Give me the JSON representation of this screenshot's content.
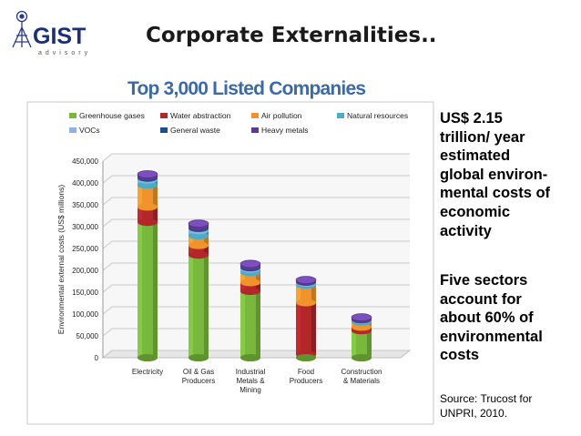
{
  "logo": {
    "brand": "GIST",
    "sub": "advisory"
  },
  "slide_title": "Corporate Externalities..",
  "chart_data": {
    "type": "bar",
    "stacked": true,
    "title": "Top 3,000 Listed Companies",
    "ylabel": "Environmental external costs (US$ millions)",
    "xlabel": "",
    "ylim": [
      0,
      450000
    ],
    "yticks": [
      "0",
      "50,000",
      "100,000",
      "150,000",
      "200,000",
      "250,000",
      "300,000",
      "350,000",
      "400,000",
      "450,000"
    ],
    "categories": [
      "Electricity",
      "Oil & Gas\nProducers",
      "Industrial\nMetals &\nMining",
      "Food\nProducers",
      "Construction\n& Materials"
    ],
    "series": [
      {
        "name": "Greenhouse gases",
        "color": "#78b83c",
        "values": [
          310000,
          235000,
          152000,
          8000,
          62000
        ]
      },
      {
        "name": "Water abstraction",
        "color": "#b3262a",
        "values": [
          35000,
          22000,
          20000,
          118000,
          8000
        ]
      },
      {
        "name": "Air pollution",
        "color": "#f0932b",
        "values": [
          50000,
          22000,
          23000,
          40000,
          12000
        ]
      },
      {
        "name": "Natural resources",
        "color": "#4bacc6",
        "values": [
          12000,
          12000,
          8000,
          5000,
          4000
        ]
      },
      {
        "name": "VOCs",
        "color": "#8db3e2",
        "values": [
          4000,
          5000,
          3000,
          2000,
          1000
        ]
      },
      {
        "name": "General waste",
        "color": "#1f4e8c",
        "values": [
          4000,
          4000,
          3000,
          2000,
          1500
        ]
      },
      {
        "name": "Heavy metals",
        "color": "#5c3a8e",
        "values": [
          5000,
          7000,
          6000,
          3000,
          4000
        ]
      }
    ],
    "grid": true,
    "legend": "top"
  },
  "side_text": {
    "block1": "US$ 2.15\ntrillion/ year\nestimated\nglobal environ-\nmental costs of\neconomic\nactivity",
    "block2": "Five sectors\naccount for\nabout 60% of\nenvironmental\ncosts"
  },
  "source": "Source: Trucost for\nUNPRI, 2010."
}
